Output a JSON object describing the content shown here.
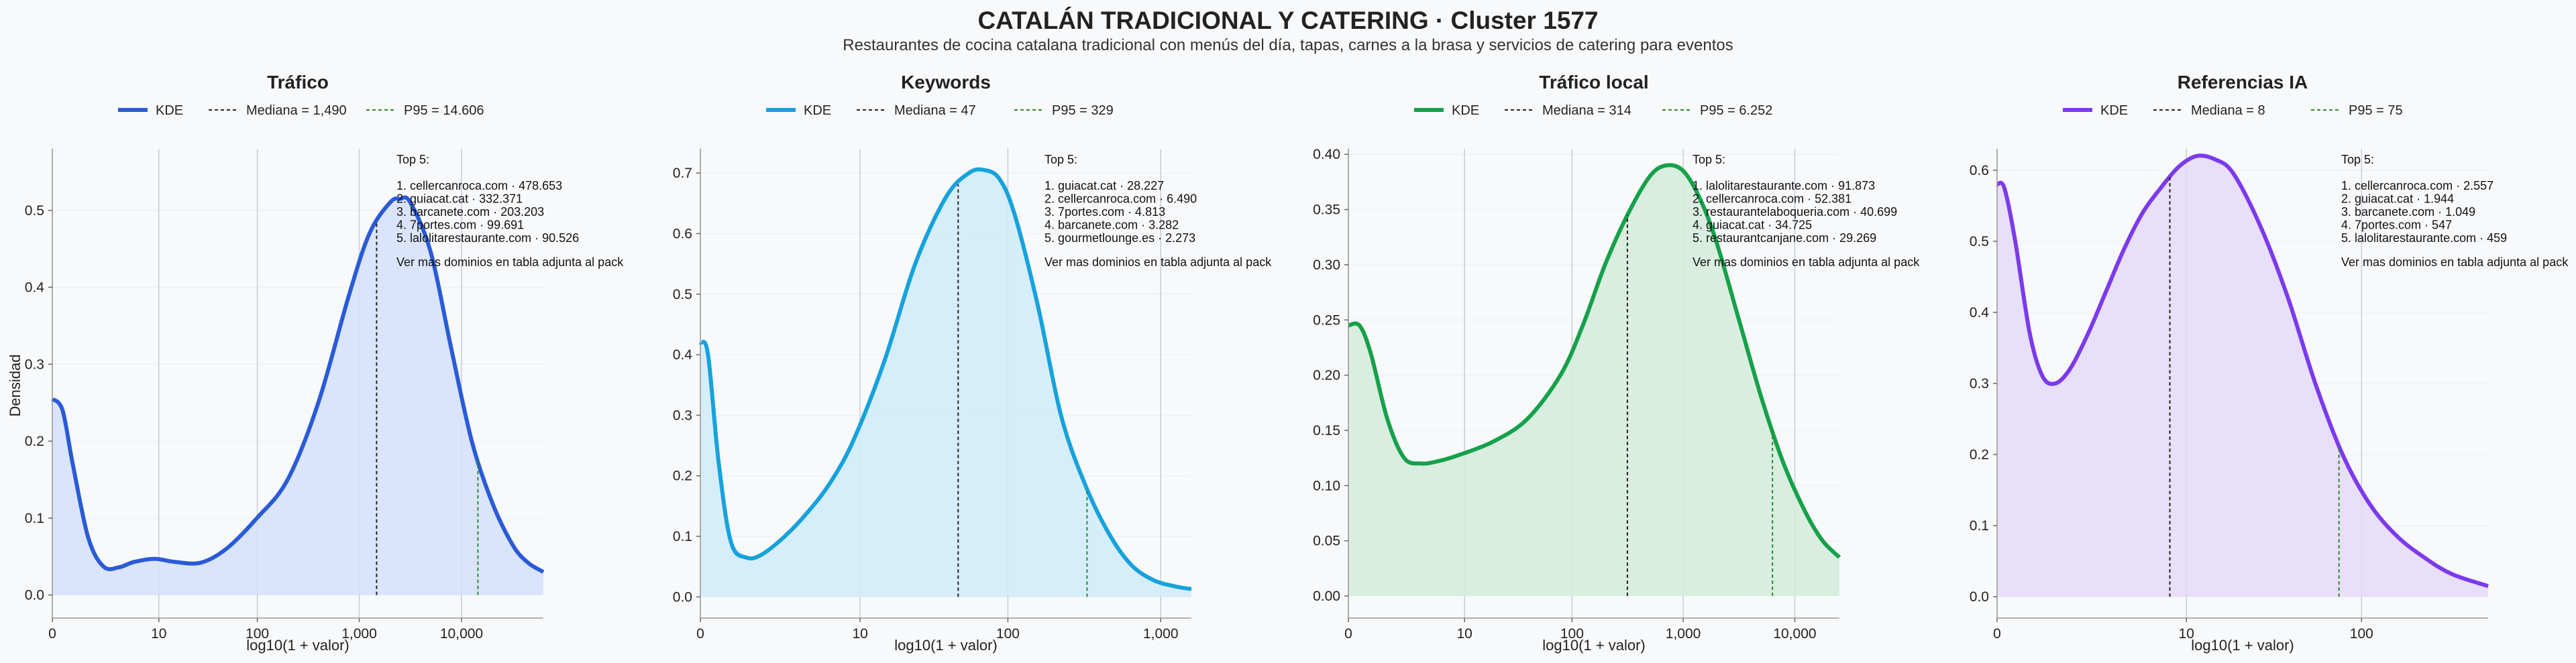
{
  "title": "CATALÁN TRADICIONAL Y CATERING · Cluster 1577",
  "subtitle": "Restaurantes de cocina catalana tradicional con menús del día, tapas, carnes a la brasa y servicios de catering para eventos",
  "shared_ylabel": "Densidad",
  "colors": {
    "blue": "#2a5bd7",
    "cyan": "#17a2dc",
    "green": "#16a14a",
    "purple": "#7c3aed"
  },
  "chart_data": [
    {
      "type": "area",
      "title": "Tráfico",
      "color": "#2a5bd7",
      "fill": "#d5e0fa",
      "legend": [
        "KDE",
        "Mediana = 1,490",
        "P95 = 14.606"
      ],
      "xlabel": "log10(1 + valor)",
      "ylabel": "Densidad",
      "xlim": [
        0,
        4.8
      ],
      "ylim": [
        -0.03,
        0.58
      ],
      "x_ticks": [
        {
          "v": 0,
          "label": "0"
        },
        {
          "v": 1.041,
          "label": "10"
        },
        {
          "v": 2.004,
          "label": "100"
        },
        {
          "v": 3.0,
          "label": "1,000"
        },
        {
          "v": 4.0,
          "label": "10,000"
        }
      ],
      "y_ticks": [
        {
          "v": 0.0,
          "label": "0.0"
        },
        {
          "v": 0.1,
          "label": "0.1"
        },
        {
          "v": 0.2,
          "label": "0.2"
        },
        {
          "v": 0.3,
          "label": "0.3"
        },
        {
          "v": 0.4,
          "label": "0.4"
        },
        {
          "v": 0.5,
          "label": "0.5"
        }
      ],
      "median": 3.17,
      "p95": 4.16,
      "series": [
        {
          "name": "KDE",
          "x": [
            0,
            0.1,
            0.2,
            0.35,
            0.5,
            0.65,
            0.8,
            1.0,
            1.2,
            1.45,
            1.7,
            2.0,
            2.3,
            2.6,
            2.9,
            3.1,
            3.3,
            3.4,
            3.5,
            3.7,
            3.9,
            4.1,
            4.3,
            4.5,
            4.65,
            4.8
          ],
          "y": [
            0.255,
            0.24,
            0.17,
            0.075,
            0.037,
            0.036,
            0.043,
            0.047,
            0.043,
            0.042,
            0.06,
            0.1,
            0.15,
            0.25,
            0.39,
            0.47,
            0.51,
            0.515,
            0.51,
            0.445,
            0.32,
            0.2,
            0.12,
            0.065,
            0.042,
            0.03
          ]
        }
      ],
      "top5_title": "Top 5:",
      "top5": [
        "1. cellercanroca.com · 478.653",
        "2. guiacat.cat · 332.371",
        "3. barcanete.com · 203.203",
        "4. 7portes.com · 99.691",
        "5. lalolitarestaurante.com · 90.526"
      ],
      "top5_note": "Ver mas dominios en tabla adjunta al pack"
    },
    {
      "type": "area",
      "title": "Keywords",
      "color": "#17a2dc",
      "fill": "#d0ecf9",
      "legend": [
        "KDE",
        "Mediana = 47",
        "P95 = 329"
      ],
      "xlabel": "log10(1 + valor)",
      "ylabel": "",
      "xlim": [
        0,
        3.2
      ],
      "ylim": [
        -0.035,
        0.74
      ],
      "x_ticks": [
        {
          "v": 0,
          "label": "0"
        },
        {
          "v": 1.041,
          "label": "10"
        },
        {
          "v": 2.004,
          "label": "100"
        },
        {
          "v": 3.0,
          "label": "1,000"
        }
      ],
      "y_ticks": [
        {
          "v": 0.0,
          "label": "0.0"
        },
        {
          "v": 0.1,
          "label": "0.1"
        },
        {
          "v": 0.2,
          "label": "0.2"
        },
        {
          "v": 0.3,
          "label": "0.3"
        },
        {
          "v": 0.4,
          "label": "0.4"
        },
        {
          "v": 0.5,
          "label": "0.5"
        },
        {
          "v": 0.6,
          "label": "0.6"
        },
        {
          "v": 0.7,
          "label": "0.7"
        }
      ],
      "median": 1.68,
      "p95": 2.52,
      "series": [
        {
          "name": "KDE",
          "x": [
            0,
            0.05,
            0.12,
            0.2,
            0.3,
            0.4,
            0.55,
            0.7,
            0.85,
            1.0,
            1.2,
            1.4,
            1.6,
            1.75,
            1.85,
            1.95,
            2.05,
            2.2,
            2.35,
            2.5,
            2.65,
            2.8,
            2.95,
            3.1,
            3.2
          ],
          "y": [
            0.42,
            0.4,
            0.22,
            0.09,
            0.065,
            0.07,
            0.1,
            0.14,
            0.19,
            0.26,
            0.39,
            0.55,
            0.66,
            0.7,
            0.705,
            0.69,
            0.63,
            0.48,
            0.3,
            0.19,
            0.11,
            0.055,
            0.028,
            0.017,
            0.013
          ]
        }
      ],
      "top5_title": "Top 5:",
      "top5": [
        "1. guiacat.cat · 28.227",
        "2. cellercanroca.com · 6.490",
        "3. 7portes.com · 4.813",
        "4. barcanete.com · 3.282",
        "5. gourmetlounge.es · 2.273"
      ],
      "top5_note": "Ver mas dominios en tabla adjunta al pack"
    },
    {
      "type": "area",
      "title": "Tráfico local",
      "color": "#16a14a",
      "fill": "#d3ecda",
      "legend": [
        "KDE",
        "Mediana = 314",
        "P95 = 6.252"
      ],
      "xlabel": "log10(1 + valor)",
      "ylabel": "",
      "xlim": [
        0,
        4.4
      ],
      "ylim": [
        -0.02,
        0.405
      ],
      "x_ticks": [
        {
          "v": 0,
          "label": "0"
        },
        {
          "v": 1.041,
          "label": "10"
        },
        {
          "v": 2.004,
          "label": "100"
        },
        {
          "v": 3.0,
          "label": "1,000"
        },
        {
          "v": 4.0,
          "label": "10,000"
        }
      ],
      "y_ticks": [
        {
          "v": 0.0,
          "label": "0.00"
        },
        {
          "v": 0.05,
          "label": "0.05"
        },
        {
          "v": 0.1,
          "label": "0.10"
        },
        {
          "v": 0.15,
          "label": "0.15"
        },
        {
          "v": 0.2,
          "label": "0.20"
        },
        {
          "v": 0.25,
          "label": "0.25"
        },
        {
          "v": 0.3,
          "label": "0.30"
        },
        {
          "v": 0.35,
          "label": "0.35"
        },
        {
          "v": 0.4,
          "label": "0.40"
        }
      ],
      "median": 2.5,
      "p95": 3.8,
      "series": [
        {
          "name": "KDE",
          "x": [
            0,
            0.1,
            0.2,
            0.35,
            0.5,
            0.65,
            0.8,
            1.0,
            1.3,
            1.6,
            1.9,
            2.1,
            2.3,
            2.5,
            2.7,
            2.85,
            3.0,
            3.15,
            3.3,
            3.5,
            3.7,
            3.9,
            4.1,
            4.25,
            4.4
          ],
          "y": [
            0.245,
            0.245,
            0.22,
            0.16,
            0.125,
            0.12,
            0.122,
            0.128,
            0.14,
            0.16,
            0.2,
            0.245,
            0.3,
            0.345,
            0.38,
            0.39,
            0.385,
            0.36,
            0.32,
            0.25,
            0.18,
            0.12,
            0.075,
            0.05,
            0.035
          ]
        }
      ],
      "top5_title": "Top 5:",
      "top5": [
        "1. lalolitarestaurante.com · 91.873",
        "2. cellercanroca.com · 52.381",
        "3. restaurantelaboqueria.com · 40.699",
        "4. guiacat.cat · 34.725",
        "5. restaurantcanjane.com · 29.269"
      ],
      "top5_note": "Ver mas dominios en tabla adjunta al pack"
    },
    {
      "type": "area",
      "title": "Referencias IA",
      "color": "#7c3aed",
      "fill": "#e5dbf8",
      "legend": [
        "KDE",
        "Mediana = 8",
        "P95 = 75"
      ],
      "xlabel": "log10(1 + valor)",
      "ylabel": "",
      "xlim": [
        0,
        2.7
      ],
      "ylim": [
        -0.03,
        0.63
      ],
      "x_ticks": [
        {
          "v": 0,
          "label": "0"
        },
        {
          "v": 1.041,
          "label": "10"
        },
        {
          "v": 2.004,
          "label": "100"
        }
      ],
      "y_ticks": [
        {
          "v": 0.0,
          "label": "0.0"
        },
        {
          "v": 0.1,
          "label": "0.1"
        },
        {
          "v": 0.2,
          "label": "0.2"
        },
        {
          "v": 0.3,
          "label": "0.3"
        },
        {
          "v": 0.4,
          "label": "0.4"
        },
        {
          "v": 0.5,
          "label": "0.5"
        },
        {
          "v": 0.6,
          "label": "0.6"
        }
      ],
      "median": 0.95,
      "p95": 1.88,
      "series": [
        {
          "name": "KDE",
          "x": [
            0,
            0.04,
            0.1,
            0.18,
            0.25,
            0.32,
            0.4,
            0.5,
            0.6,
            0.7,
            0.8,
            0.9,
            1.0,
            1.1,
            1.2,
            1.3,
            1.45,
            1.6,
            1.75,
            1.9,
            2.05,
            2.2,
            2.35,
            2.5,
            2.7
          ],
          "y": [
            0.58,
            0.575,
            0.5,
            0.37,
            0.31,
            0.3,
            0.32,
            0.37,
            0.43,
            0.49,
            0.54,
            0.575,
            0.605,
            0.62,
            0.615,
            0.595,
            0.52,
            0.42,
            0.3,
            0.2,
            0.13,
            0.085,
            0.055,
            0.032,
            0.015
          ]
        }
      ],
      "top5_title": "Top 5:",
      "top5": [
        "1. cellercanroca.com · 2.557",
        "2. guiacat.cat · 1.944",
        "3. barcanete.com · 1.049",
        "4. 7portes.com · 547",
        "5. lalolitarestaurante.com · 459"
      ],
      "top5_note": "Ver mas dominios en tabla adjunta al pack"
    }
  ]
}
